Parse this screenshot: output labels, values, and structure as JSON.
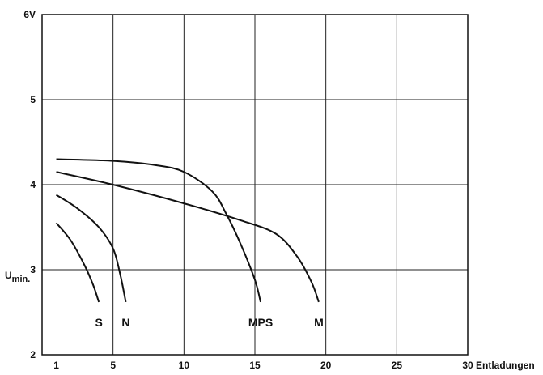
{
  "chart_data": {
    "type": "line",
    "xlabel": "Entladungen",
    "ylabel_main": "U",
    "ylabel_sub": "min.",
    "xlim": [
      0,
      30
    ],
    "ylim": [
      2,
      6
    ],
    "x_ticks": [
      {
        "value": 1,
        "label": "1"
      },
      {
        "value": 5,
        "label": "5"
      },
      {
        "value": 10,
        "label": "10"
      },
      {
        "value": 15,
        "label": "15"
      },
      {
        "value": 20,
        "label": "20"
      },
      {
        "value": 25,
        "label": "25"
      },
      {
        "value": 30,
        "label": "30"
      }
    ],
    "y_ticks": [
      {
        "value": 2,
        "label": "2"
      },
      {
        "value": 3,
        "label": "3"
      },
      {
        "value": 4,
        "label": "4"
      },
      {
        "value": 5,
        "label": "5"
      },
      {
        "value": 6,
        "label": "6V"
      }
    ],
    "grid": true,
    "series": [
      {
        "name": "S",
        "x": [
          1,
          2,
          3,
          3.6,
          4
        ],
        "y": [
          3.55,
          3.35,
          3.05,
          2.82,
          2.62
        ]
      },
      {
        "name": "N",
        "x": [
          1,
          2.5,
          4,
          5,
          5.5,
          5.9
        ],
        "y": [
          3.88,
          3.72,
          3.5,
          3.25,
          2.95,
          2.62
        ]
      },
      {
        "name": "MPS",
        "x": [
          1,
          5,
          8,
          10,
          12,
          13,
          14,
          15,
          15.4
        ],
        "y": [
          4.3,
          4.28,
          4.23,
          4.15,
          3.92,
          3.65,
          3.3,
          2.88,
          2.62
        ]
      },
      {
        "name": "M",
        "x": [
          1,
          5,
          10,
          14,
          16.5,
          18,
          19,
          19.5
        ],
        "y": [
          4.15,
          4.0,
          3.78,
          3.58,
          3.42,
          3.15,
          2.85,
          2.62
        ]
      }
    ]
  }
}
